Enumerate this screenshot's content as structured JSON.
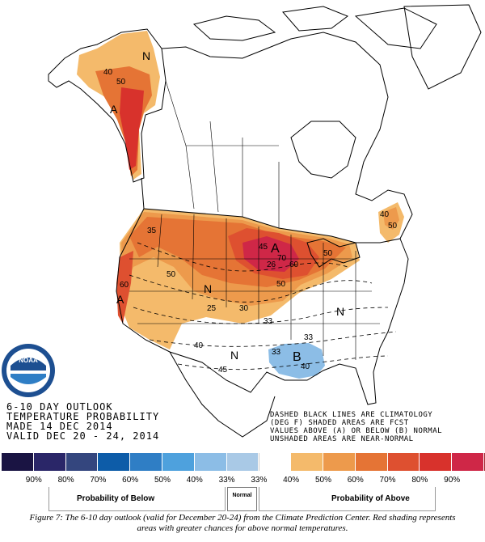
{
  "map": {
    "labels": {
      "n_north": "N",
      "ak_40": "40",
      "ak_50": "50",
      "ak_a": "A",
      "a_plains": "A",
      "n_central": "N",
      "n_east": "N",
      "b_gulf": "B",
      "a_west": "A",
      "n_mid": "N",
      "c35": "35",
      "c45a": "45",
      "c70": "70",
      "c26": "26",
      "c60": "60",
      "c50a": "50",
      "c50b": "50",
      "c50c": "50",
      "c60w": "60",
      "c25": "25",
      "c30": "30",
      "c33a": "33",
      "c33b": "33",
      "c33c": "33",
      "c40a": "40",
      "c40b": "40",
      "c45b": "45",
      "c40ne": "40",
      "c50ne": "50"
    },
    "agency": "NOAA"
  },
  "info": {
    "line1": "6-10 DAY OUTLOOK",
    "line2": "TEMPERATURE PROBABILITY",
    "line3": "MADE  14 DEC 2014",
    "line4": "VALID  DEC 20 - 24, 2014"
  },
  "note": {
    "line1": "DASHED BLACK LINES ARE CLIMATOLOGY",
    "line2": "(DEG F) SHADED AREAS ARE FCST",
    "line3": "VALUES ABOVE (A) OR BELOW (B) NORMAL",
    "line4": "UNSHADED AREAS ARE NEAR-NORMAL"
  },
  "legend": {
    "colors": [
      "#1a1443",
      "#2a2668",
      "#34467e",
      "#0d5ca8",
      "#2f7ec5",
      "#4ea1dd",
      "#8cbde6",
      "#a9c9e6",
      "#ffffff",
      "#f4ba6b",
      "#ed9a4c",
      "#e57435",
      "#de5030",
      "#d8322c",
      "#cf2747",
      "#a4252e",
      "#86222a",
      "#6c1f24"
    ],
    "ticks": [
      "90%",
      "80%",
      "70%",
      "60%",
      "50%",
      "40%",
      "33%",
      "33%",
      "40%",
      "50%",
      "60%",
      "70%",
      "80%",
      "90%"
    ],
    "below_title": "Probability of Below",
    "normal_label": "Normal",
    "above_title": "Probability of Above"
  },
  "caption": {
    "line1": "Figure 7:  The 6-10 day outlook (valid for December 20-24) from the Climate Prediction Center. Red shading represents",
    "line2": "areas with greater chances for above normal temperatures."
  }
}
